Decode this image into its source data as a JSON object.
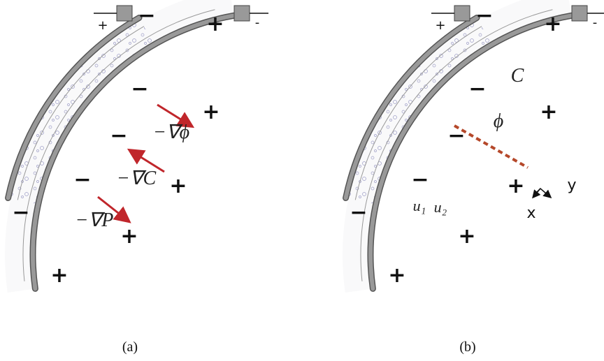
{
  "panels": [
    {
      "caption": "(a)",
      "terminals": [
        "+",
        "-"
      ],
      "signs": [
        "−",
        "−",
        "−",
        "−",
        "−",
        "+",
        "+",
        "+",
        "+",
        "+"
      ],
      "labels": [
        "−∇ϕ",
        "−∇C",
        "−∇P"
      ]
    },
    {
      "caption": "(b)",
      "terminals": [
        "+",
        "-"
      ],
      "signs": [
        "−",
        "−",
        "−",
        "−",
        "−",
        "+",
        "+",
        "+",
        "+",
        "+"
      ],
      "labels": [
        "C",
        "ϕ",
        "u₁",
        "u₂",
        "y",
        "x"
      ]
    }
  ]
}
